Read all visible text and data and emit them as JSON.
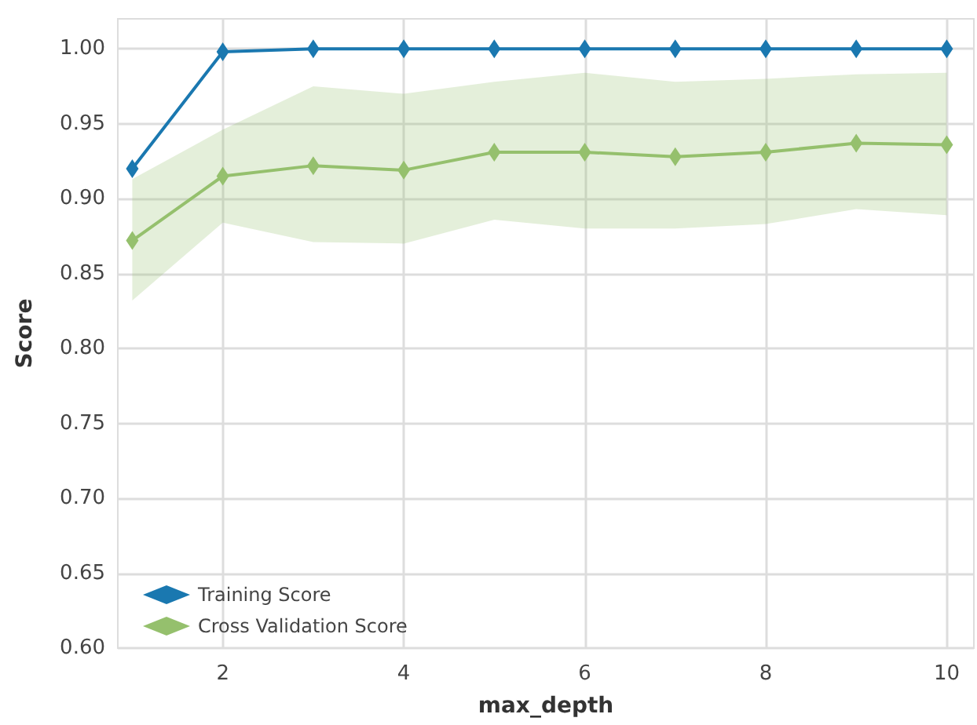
{
  "chart_data": {
    "type": "line",
    "xlabel": "max_depth",
    "ylabel": "Score",
    "x": [
      1,
      2,
      3,
      4,
      5,
      6,
      7,
      8,
      9,
      10
    ],
    "series": [
      {
        "name": "Training Score",
        "color": "#1a78b0",
        "values": [
          0.92,
          0.998,
          1.0,
          1.0,
          1.0,
          1.0,
          1.0,
          1.0,
          1.0,
          1.0
        ]
      },
      {
        "name": "Cross Validation Score",
        "color": "#95c06d",
        "values": [
          0.872,
          0.915,
          0.922,
          0.919,
          0.931,
          0.931,
          0.928,
          0.931,
          0.937,
          0.936
        ],
        "lower": [
          0.832,
          0.884,
          0.871,
          0.87,
          0.886,
          0.88,
          0.88,
          0.883,
          0.893,
          0.889
        ],
        "upper": [
          0.913,
          0.946,
          0.975,
          0.97,
          0.978,
          0.984,
          0.978,
          0.98,
          0.983,
          0.984
        ]
      }
    ],
    "xlim": [
      0.84,
      10.3
    ],
    "xticks": [
      2,
      4,
      6,
      8,
      10
    ],
    "ylim": [
      0.6,
      1.02
    ],
    "yticks": [
      {
        "value": 0.6,
        "label": "0.60"
      },
      {
        "value": 0.65,
        "label": "0.65"
      },
      {
        "value": 0.7,
        "label": "0.70"
      },
      {
        "value": 0.75,
        "label": "0.75"
      },
      {
        "value": 0.8,
        "label": "0.80"
      },
      {
        "value": 0.85,
        "label": "0.85"
      },
      {
        "value": 0.9,
        "label": "0.90"
      },
      {
        "value": 0.95,
        "label": "0.95"
      },
      {
        "value": 1.0,
        "label": "1.00"
      }
    ],
    "grid": true,
    "legend": "bottom left",
    "marker": "diamond",
    "line_style": "solid"
  }
}
